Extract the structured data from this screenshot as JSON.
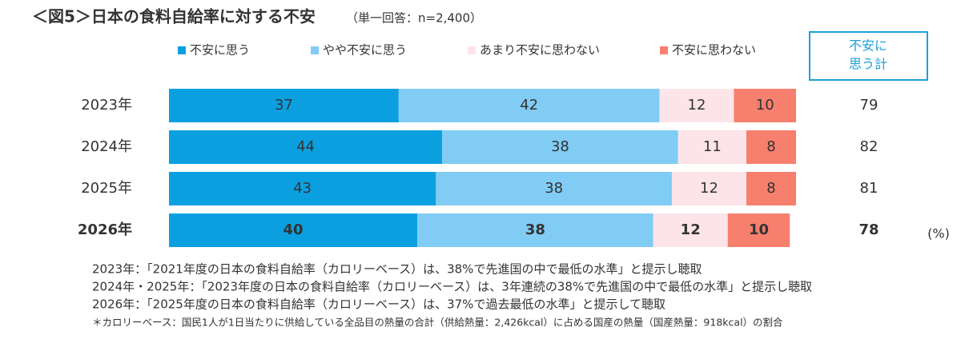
{
  "chart_data": {
    "type": "stacked_bar_horizontal",
    "title": "＜図5＞日本の食料自給率に対する不安",
    "subtitle": "（単一回答：n=2,400）",
    "categories": [
      "2023年",
      "2024年",
      "2025年",
      "2026年"
    ],
    "emphasis_index": 3,
    "series": [
      {
        "name": "不安に思う",
        "color": "#0aa0e0",
        "label_color": "#ffffff",
        "values": [
          37,
          44,
          43,
          40
        ]
      },
      {
        "name": "やや不安に思う",
        "color": "#80ccf4",
        "label_color": "#444444",
        "values": [
          42,
          38,
          38,
          38
        ]
      },
      {
        "name": "あまり不安に思わない",
        "color": "#fce4e8",
        "label_color": "#444444",
        "values": [
          12,
          11,
          12,
          12
        ]
      },
      {
        "name": "不安に思わない",
        "color": "#f77f6e",
        "label_color": "#ffffff",
        "values": [
          10,
          8,
          8,
          10
        ]
      }
    ],
    "xlim": [
      0,
      101
    ],
    "totals": {
      "header": [
        "不安に",
        "思う計"
      ],
      "values": [
        79,
        82,
        81,
        78
      ],
      "color": "#1ea0d8"
    },
    "unit": "(%)",
    "notes": [
      "2023年：「2021年度の日本の食料自給率（カロリーベース）は、38%で先進国の中で最低の水準」と提示し聴取",
      "2024年・2025年：「2023年度の日本の食料自給率（カロリーベース）は、3年連続の38%で先進国の中で最低の水準」と提示し聴取",
      "2026年：「2025年度の日本の食料自給率（カロリーベース）は、37%で過去最低の水準」と提示して聴取"
    ],
    "footnote": "＊カロリーベース：国民1人が1日当たりに供給している全品目の熱量の合計（供給熱量：2,426kcal）に占める国産の熱量（国産熱量：918kcal）の割合"
  }
}
